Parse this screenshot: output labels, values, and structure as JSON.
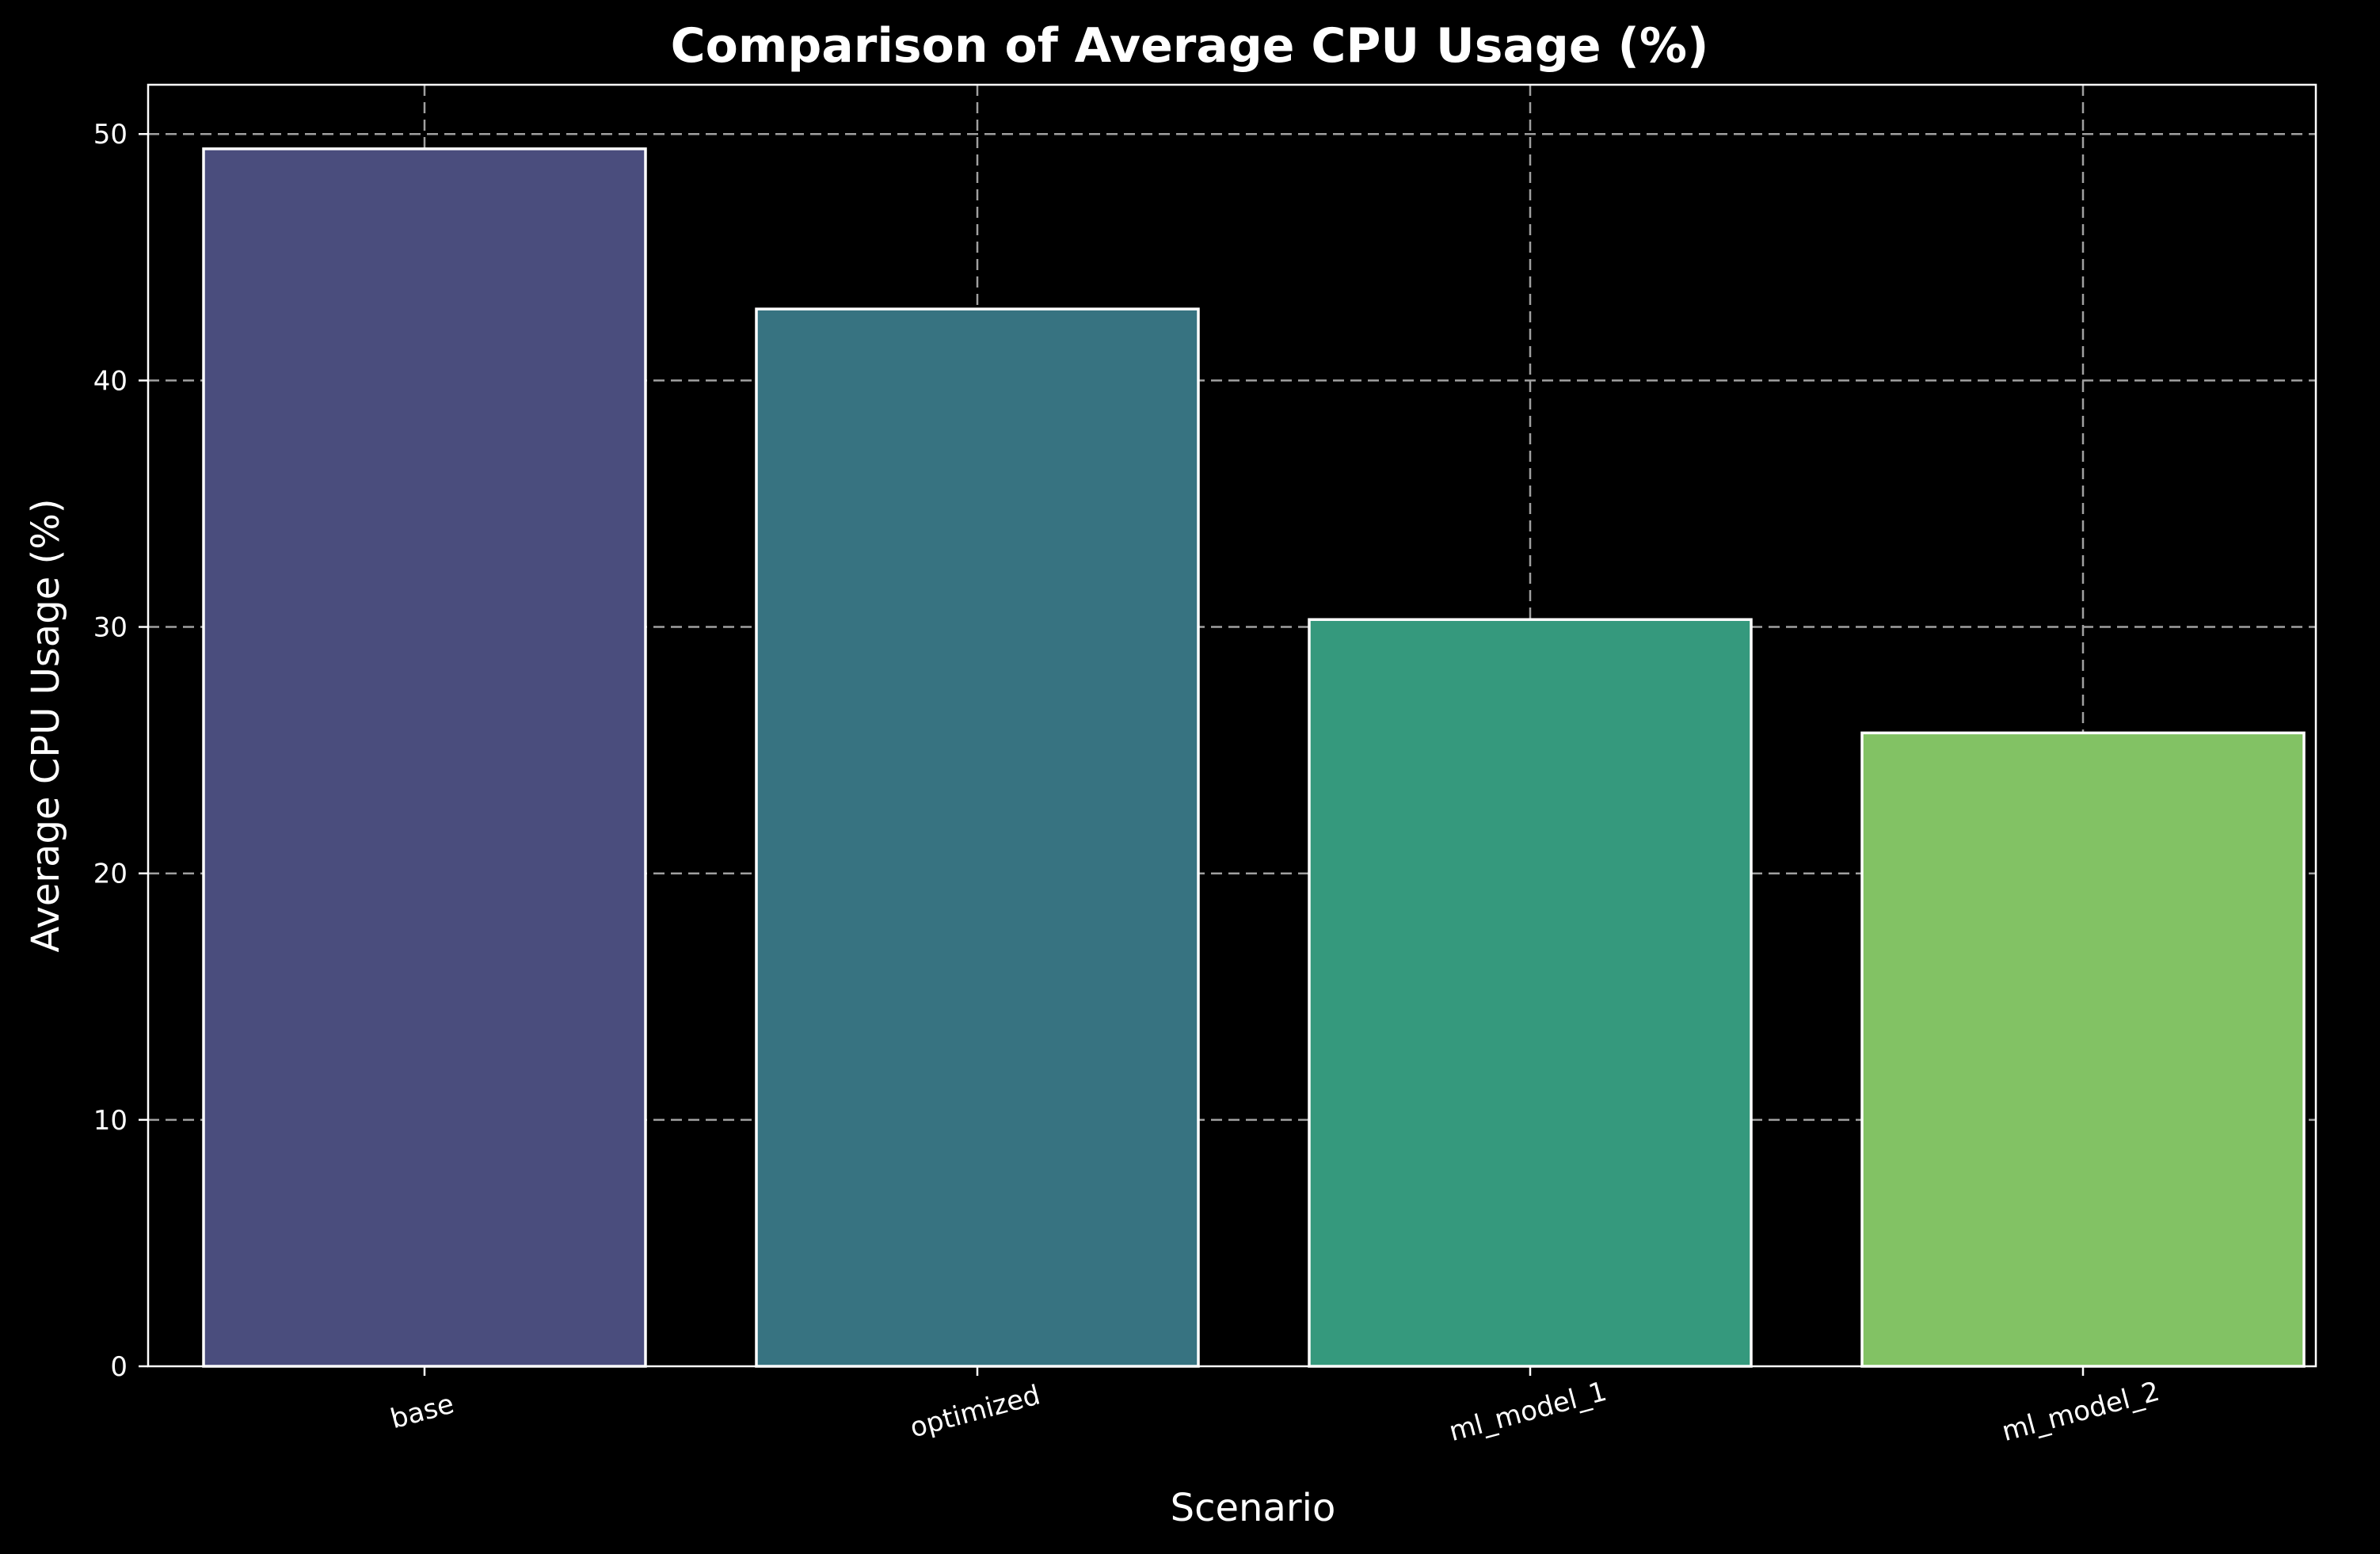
{
  "chart_data": {
    "type": "bar",
    "title": "Comparison of Average CPU Usage (%)",
    "xlabel": "Scenario",
    "ylabel": "Average CPU Usage (%)",
    "categories": [
      "base",
      "optimized",
      "ml_model_1",
      "ml_model_2"
    ],
    "values": [
      49.4,
      42.9,
      30.3,
      25.7
    ],
    "colors": [
      "#4a4d7d",
      "#377381",
      "#35997d",
      "#82c264"
    ],
    "ylim": [
      0,
      52
    ],
    "yticks": [
      0,
      10,
      20,
      30,
      40,
      50
    ],
    "grid": true,
    "background": "#000000",
    "edge_color": "#ffffff"
  }
}
